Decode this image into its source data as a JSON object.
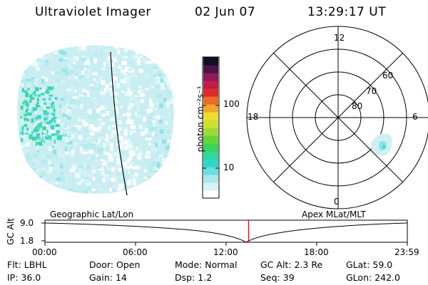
{
  "header": {
    "instrument": "Ultraviolet Imager",
    "date": "02 Jun 07",
    "time": "13:29:17 UT"
  },
  "colorbar": {
    "label": "photon cm⁻²s⁻¹",
    "ticks": [
      {
        "label": "100",
        "value": 100
      },
      {
        "label": "10",
        "value": 10
      }
    ],
    "colors": [
      "#ffffff",
      "#d6f2f5",
      "#a8e8ee",
      "#67dfe3",
      "#2fd8c6",
      "#2fd79a",
      "#37d655",
      "#63d638",
      "#9fda32",
      "#cfe032",
      "#f0dc2c",
      "#f3a62a",
      "#ee6a28",
      "#e02a2a",
      "#c51a4a",
      "#901a58",
      "#4a1448",
      "#101020"
    ]
  },
  "polar": {
    "clock_labels": {
      "top": "12",
      "left": "18",
      "right": "6",
      "bottom": "0"
    },
    "lat_labels": [
      "60",
      "70",
      "80"
    ]
  },
  "timeline": {
    "left_title": "Geographic Lat/Lon",
    "right_title": "Apex MLat/MLT",
    "ylabel": "GC Alt",
    "y_ticks": [
      "9.0",
      "1.8"
    ],
    "x_ticks": [
      "00:00",
      "06:00",
      "12:00",
      "18:00",
      "23:59"
    ],
    "marker_time_hours": 13.49
  },
  "footer": {
    "row1": [
      {
        "key": "Flt:",
        "val": "LBHL"
      },
      {
        "key": "Door:",
        "val": "Open"
      },
      {
        "key": "Mode:",
        "val": "Normal"
      },
      {
        "key": "GC Alt:",
        "val": "2.3 Re"
      },
      {
        "key": "GLat:",
        "val": "59.0"
      }
    ],
    "row2": [
      {
        "key": "IP:",
        "val": "36.0"
      },
      {
        "key": "Gain:",
        "val": "14"
      },
      {
        "key": "Dsp:",
        "val": "1.2"
      },
      {
        "key": "Seq:",
        "val": "39"
      },
      {
        "key": "GLon:",
        "val": "242.0"
      }
    ]
  }
}
